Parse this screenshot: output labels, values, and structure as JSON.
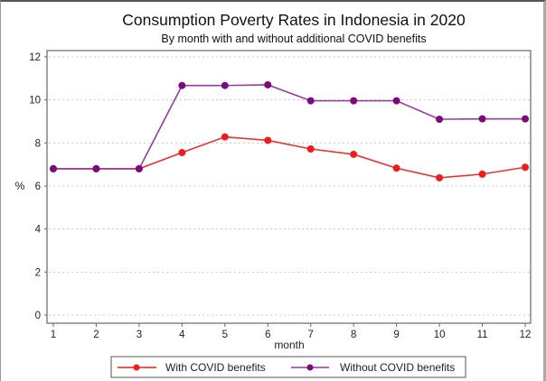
{
  "chart_data": {
    "type": "line",
    "title": "Consumption Poverty Rates in Indonesia in 2020",
    "subtitle": "By month with and without additional COVID benefits",
    "xlabel": "month",
    "ylabel": "%",
    "x": [
      1,
      2,
      3,
      4,
      5,
      6,
      7,
      8,
      9,
      10,
      11,
      12
    ],
    "xlim": [
      1,
      12
    ],
    "ylim": [
      0,
      12
    ],
    "yticks": [
      0,
      2,
      4,
      6,
      8,
      10,
      12
    ],
    "xticks": [
      1,
      2,
      3,
      4,
      5,
      6,
      7,
      8,
      9,
      10,
      11,
      12
    ],
    "grid": true,
    "legend_position": "bottom",
    "series": [
      {
        "name": "With COVID benefits",
        "color": "#ee1c1c",
        "values": [
          6.8,
          6.8,
          6.8,
          7.55,
          8.28,
          8.12,
          7.72,
          7.47,
          6.83,
          6.38,
          6.55,
          6.87
        ]
      },
      {
        "name": "Without COVID benefits",
        "color": "#7a0a7e",
        "values": [
          6.8,
          6.8,
          6.8,
          10.67,
          10.67,
          10.7,
          9.96,
          9.96,
          9.96,
          9.1,
          9.12,
          9.12
        ]
      }
    ]
  }
}
